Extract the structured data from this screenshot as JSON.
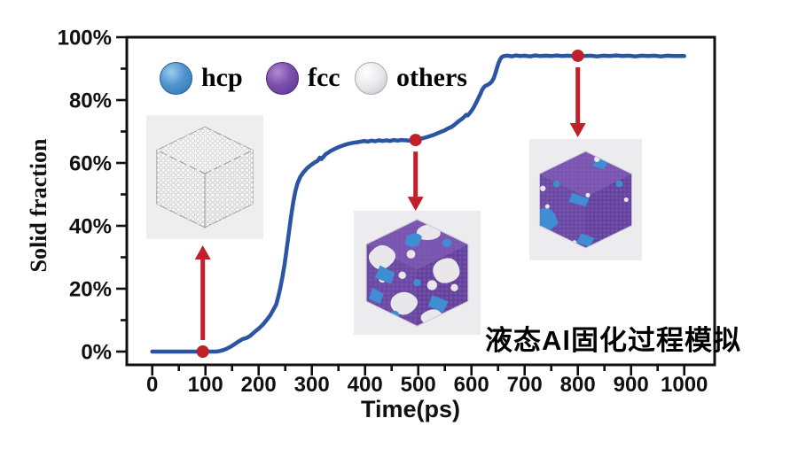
{
  "title": {
    "text": "液态Al固化过程模拟"
  },
  "legend": {
    "items": [
      {
        "label": "hcp",
        "color": "#4f94cf"
      },
      {
        "label": "fcc",
        "color": "#7c4fae"
      },
      {
        "label": "others",
        "color": "#e6e5e9"
      }
    ]
  },
  "axes": {
    "x": {
      "label": "Time(ps)",
      "min": 0,
      "max": 1000,
      "major_step": 100,
      "minor_step": 50,
      "tick_labels": [
        "0",
        "100",
        "200",
        "300",
        "400",
        "500",
        "600",
        "700",
        "800",
        "900",
        "1000"
      ]
    },
    "y": {
      "label": "Solid fraction",
      "min": 0,
      "max": 100,
      "major_step": 20,
      "minor_step": 10,
      "tick_labels": [
        "0%",
        "20%",
        "40%",
        "60%",
        "80%",
        "100%"
      ]
    }
  },
  "chart_data": {
    "type": "line",
    "title": "",
    "xlabel": "Time(ps)",
    "ylabel": "Solid fraction",
    "xlim": [
      0,
      1000
    ],
    "ylim": [
      0,
      100
    ],
    "grid": false,
    "legend_position": "top-inside",
    "series": [
      {
        "name": "solid fraction (%)",
        "color": "#2b55a3",
        "points": [
          [
            0,
            0
          ],
          [
            20,
            0
          ],
          [
            40,
            0
          ],
          [
            60,
            0
          ],
          [
            80,
            0
          ],
          [
            95,
            0
          ],
          [
            110,
            0
          ],
          [
            120,
            0
          ],
          [
            125,
            0.1
          ],
          [
            132,
            0.4
          ],
          [
            140,
            0.9
          ],
          [
            148,
            1.6
          ],
          [
            156,
            2.5
          ],
          [
            164,
            3.4
          ],
          [
            170,
            4.0
          ],
          [
            177,
            4.3
          ],
          [
            184,
            5.0
          ],
          [
            192,
            6.2
          ],
          [
            200,
            7.3
          ],
          [
            208,
            8.6
          ],
          [
            215,
            10.0
          ],
          [
            222,
            11.6
          ],
          [
            228,
            13.4
          ],
          [
            233,
            15.0
          ],
          [
            237,
            17.5
          ],
          [
            241,
            20.5
          ],
          [
            245,
            24
          ],
          [
            249,
            28
          ],
          [
            253,
            33
          ],
          [
            257,
            38
          ],
          [
            261,
            43
          ],
          [
            265,
            47.5
          ],
          [
            269,
            51
          ],
          [
            273,
            53.5
          ],
          [
            278,
            55.5
          ],
          [
            284,
            57
          ],
          [
            291,
            58.3
          ],
          [
            298,
            59.3
          ],
          [
            305,
            60.1
          ],
          [
            311,
            60.7
          ],
          [
            315,
            61.7
          ],
          [
            318,
            61.2
          ],
          [
            322,
            62.0
          ],
          [
            326,
            62.8
          ],
          [
            331,
            63.3
          ],
          [
            336,
            63.9
          ],
          [
            341,
            64.3
          ],
          [
            347,
            64.8
          ],
          [
            354,
            65.3
          ],
          [
            361,
            65.7
          ],
          [
            369,
            66.1
          ],
          [
            377,
            66.4
          ],
          [
            385,
            66.6
          ],
          [
            392,
            66.8
          ],
          [
            398,
            67.0
          ],
          [
            405,
            66.8
          ],
          [
            412,
            67.1
          ],
          [
            419,
            66.9
          ],
          [
            426,
            67.2
          ],
          [
            433,
            67.0
          ],
          [
            440,
            67.2
          ],
          [
            447,
            67.0
          ],
          [
            454,
            67.3
          ],
          [
            461,
            67.1
          ],
          [
            468,
            67.3
          ],
          [
            475,
            67.2
          ],
          [
            482,
            67.1
          ],
          [
            489,
            67.3
          ],
          [
            495,
            67.4
          ],
          [
            502,
            67.6
          ],
          [
            509,
            67.9
          ],
          [
            516,
            68.2
          ],
          [
            523,
            68.6
          ],
          [
            530,
            69.0
          ],
          [
            537,
            69.5
          ],
          [
            544,
            70.0
          ],
          [
            550,
            70.4
          ],
          [
            556,
            71.0
          ],
          [
            562,
            71.4
          ],
          [
            567,
            72.0
          ],
          [
            572,
            72.7
          ],
          [
            577,
            73.4
          ],
          [
            582,
            74.0
          ],
          [
            586,
            74.6
          ],
          [
            590,
            75.3
          ],
          [
            593,
            75.1
          ],
          [
            597,
            75.9
          ],
          [
            601,
            76.8
          ],
          [
            605,
            77.9
          ],
          [
            609,
            79.2
          ],
          [
            613,
            80.6
          ],
          [
            617,
            82.0
          ],
          [
            620,
            83.2
          ],
          [
            623,
            84.0
          ],
          [
            626,
            84.5
          ],
          [
            630,
            84.8
          ],
          [
            634,
            85.2
          ],
          [
            638,
            85.8
          ],
          [
            642,
            87.0
          ],
          [
            645,
            88.5
          ],
          [
            648,
            90.2
          ],
          [
            651,
            91.8
          ],
          [
            654,
            93.0
          ],
          [
            657,
            93.7
          ],
          [
            661,
            94.0
          ],
          [
            668,
            94.1
          ],
          [
            676,
            93.9
          ],
          [
            684,
            94.2
          ],
          [
            692,
            94.0
          ],
          [
            700,
            94.1
          ],
          [
            710,
            93.9
          ],
          [
            720,
            94.2
          ],
          [
            730,
            94.0
          ],
          [
            740,
            94.1
          ],
          [
            750,
            94.0
          ],
          [
            760,
            94.2
          ],
          [
            770,
            94.0
          ],
          [
            780,
            94.1
          ],
          [
            790,
            94.0
          ],
          [
            800,
            94.2
          ],
          [
            812,
            94.0
          ],
          [
            824,
            94.1
          ],
          [
            836,
            93.9
          ],
          [
            848,
            94.1
          ],
          [
            860,
            94.0
          ],
          [
            872,
            94.2
          ],
          [
            884,
            94.0
          ],
          [
            896,
            94.1
          ],
          [
            908,
            93.9
          ],
          [
            920,
            94.1
          ],
          [
            932,
            94.0
          ],
          [
            944,
            94.1
          ],
          [
            956,
            93.9
          ],
          [
            968,
            94.1
          ],
          [
            980,
            94.0
          ],
          [
            1000,
            94.0
          ]
        ]
      }
    ],
    "annotations": {
      "color": "#c0202a",
      "points": [
        {
          "t": 95,
          "frac": 0,
          "arrow_dir": "up",
          "arrow_len": 120,
          "target": "liquid cube snapshot"
        },
        {
          "t": 495,
          "frac": 67.3,
          "arrow_dir": "down",
          "arrow_len": 80,
          "target": "partially solidified cube snapshot"
        },
        {
          "t": 800,
          "frac": 94.1,
          "arrow_dir": "down",
          "arrow_len": 92,
          "target": "fully solidified cube snapshot"
        }
      ]
    }
  },
  "insets": [
    {
      "name": "liquid-al-cube",
      "desc": "disordered liquid (others)"
    },
    {
      "name": "partially-solidified-cube",
      "desc": "fcc/hcp grains with liquid"
    },
    {
      "name": "solidified-cube",
      "desc": "mostly fcc with hcp boundaries"
    }
  ],
  "colors": {
    "curve": "#2b55a3",
    "annotation_red": "#c0202a",
    "hcp": "#4f94cf",
    "fcc": "#7c4fae",
    "others": "#e6e5e9"
  }
}
